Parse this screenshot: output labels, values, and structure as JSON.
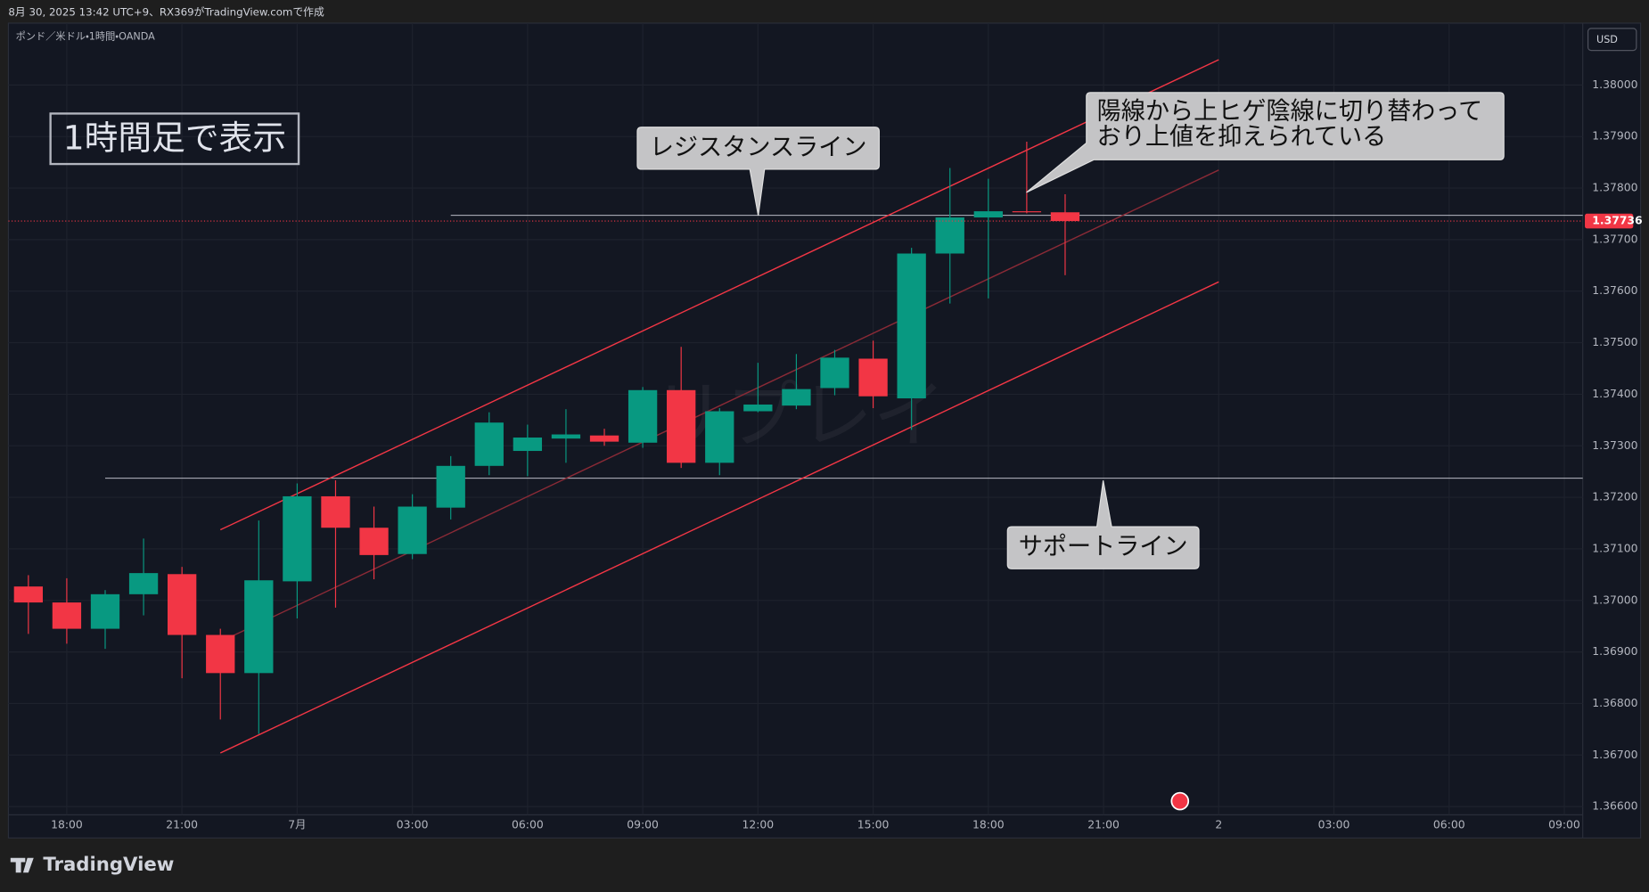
{
  "chart_data": {
    "type": "candlestick",
    "caption": "8月 30, 2025 13:42 UTC+9、RX369がTradingView.comで作成",
    "symbol": "ポンド／米ドル・1時間・OANDA",
    "currency": "USD",
    "brand": "TradingView",
    "watermark": "リプレイ",
    "up_color": "#089981",
    "down_color": "#f23645",
    "x": [
      0,
      1,
      2,
      3,
      4,
      5,
      6,
      7,
      8,
      9,
      10,
      11,
      12,
      13,
      14,
      15,
      16,
      17,
      18,
      19,
      20,
      21,
      22,
      23,
      24,
      25,
      26,
      27
    ],
    "open": [
      1.37027,
      1.36996,
      1.36945,
      1.37012,
      1.37051,
      1.36933,
      1.36859,
      1.37037,
      1.37202,
      1.37141,
      1.3709,
      1.3718,
      1.37261,
      1.3729,
      1.37314,
      1.3732,
      1.37306,
      1.37408,
      1.37267,
      1.37367,
      1.37378,
      1.37412,
      1.37469,
      1.37392,
      1.37673,
      1.37743,
      1.37755,
      1.37753
    ],
    "high": [
      1.37049,
      1.37043,
      1.3702,
      1.3712,
      1.37065,
      1.36945,
      1.37155,
      1.37227,
      1.37233,
      1.37182,
      1.37206,
      1.3728,
      1.37365,
      1.37341,
      1.37371,
      1.37333,
      1.37414,
      1.37492,
      1.37373,
      1.37461,
      1.37478,
      1.37486,
      1.37504,
      1.37684,
      1.37839,
      1.37818,
      1.3789,
      1.37788
    ],
    "low": [
      1.36935,
      1.36916,
      1.36906,
      1.36971,
      1.36849,
      1.36769,
      1.36741,
      1.36965,
      1.36986,
      1.37041,
      1.3708,
      1.37157,
      1.37243,
      1.37241,
      1.37267,
      1.373,
      1.37296,
      1.37257,
      1.37243,
      1.37365,
      1.37371,
      1.37398,
      1.37373,
      1.37331,
      1.37576,
      1.37586,
      1.37751,
      1.37631
    ],
    "close": [
      1.36996,
      1.36945,
      1.37012,
      1.37053,
      1.36933,
      1.36859,
      1.37039,
      1.37202,
      1.37141,
      1.37088,
      1.37182,
      1.37261,
      1.37345,
      1.37316,
      1.37322,
      1.37308,
      1.37408,
      1.37267,
      1.37367,
      1.3738,
      1.3741,
      1.37471,
      1.37396,
      1.37673,
      1.37743,
      1.37755,
      1.37753,
      1.37736
    ],
    "last_price": 1.37736,
    "xlim": [
      -0.52,
      40.48
    ],
    "ylim": [
      1.36584,
      1.3812
    ],
    "xticks": [
      {
        "value": 1,
        "label": "18:00"
      },
      {
        "value": 4,
        "label": "21:00"
      },
      {
        "value": 7,
        "label": "7月"
      },
      {
        "value": 10,
        "label": "03:00"
      },
      {
        "value": 13,
        "label": "06:00"
      },
      {
        "value": 16,
        "label": "09:00"
      },
      {
        "value": 19,
        "label": "12:00"
      },
      {
        "value": 22,
        "label": "15:00"
      },
      {
        "value": 25,
        "label": "18:00"
      },
      {
        "value": 28,
        "label": "21:00"
      },
      {
        "value": 31,
        "label": "2"
      },
      {
        "value": 34,
        "label": "03:00"
      },
      {
        "value": 37,
        "label": "06:00"
      },
      {
        "value": 40,
        "label": "09:00"
      }
    ],
    "yticks": [
      {
        "value": 1.366,
        "label": "1.36600"
      },
      {
        "value": 1.367,
        "label": "1.36700"
      },
      {
        "value": 1.368,
        "label": "1.36800"
      },
      {
        "value": 1.369,
        "label": "1.36900"
      },
      {
        "value": 1.37,
        "label": "1.37000"
      },
      {
        "value": 1.371,
        "label": "1.37100"
      },
      {
        "value": 1.372,
        "label": "1.37200"
      },
      {
        "value": 1.373,
        "label": "1.37300"
      },
      {
        "value": 1.374,
        "label": "1.37400"
      },
      {
        "value": 1.375,
        "label": "1.37500"
      },
      {
        "value": 1.376,
        "label": "1.37600"
      },
      {
        "value": 1.377,
        "label": "1.37700"
      },
      {
        "value": 1.378,
        "label": "1.37800"
      },
      {
        "value": 1.379,
        "label": "1.37900"
      },
      {
        "value": 1.38,
        "label": "1.38000"
      }
    ],
    "grid": true,
    "hlines": [
      {
        "value": 1.37747,
        "x": 11
      },
      {
        "value": 1.37237,
        "x": 2
      }
    ],
    "trendlines": [
      {
        "x": [
          5,
          31
        ],
        "y": [
          1.37137,
          1.38049
        ],
        "color": "#f23645"
      },
      {
        "x": [
          5,
          31
        ],
        "y": [
          1.3692,
          1.37835
        ],
        "color": "#8a2a36"
      },
      {
        "x": [
          5,
          31
        ],
        "y": [
          1.36704,
          1.37618
        ],
        "color": "#f23645"
      }
    ],
    "annotations": [
      {
        "text": "1時間足で表示"
      },
      {
        "text": "レジスタンスライン"
      },
      {
        "text": [
          "陽線から上ヒゲ陰線に切り替わって",
          "おり上値を抑えられている"
        ]
      },
      {
        "text": "サポートライン"
      }
    ]
  }
}
